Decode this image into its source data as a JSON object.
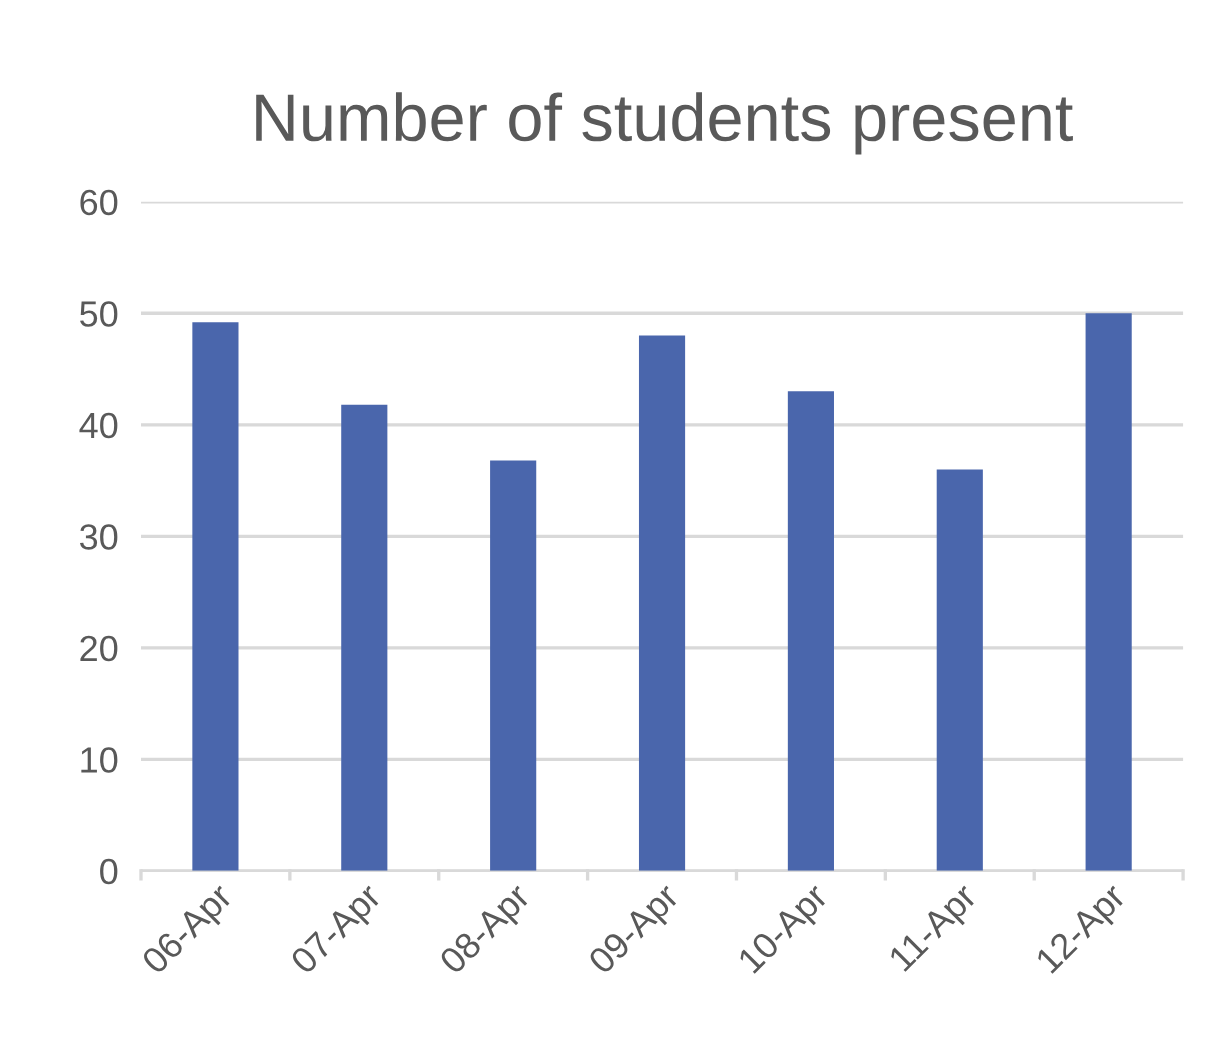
{
  "chart_data": {
    "type": "bar",
    "title": "Number of students present",
    "categories": [
      "06-Apr",
      "07-Apr",
      "08-Apr",
      "09-Apr",
      "10-Apr",
      "11-Apr",
      "12-Apr"
    ],
    "values": [
      49.2,
      41.8,
      36.8,
      48,
      43,
      36,
      50
    ],
    "color": "#4a66ac",
    "ylim": [
      0,
      60
    ],
    "yticks": [
      0,
      10,
      20,
      30,
      40,
      50,
      60
    ],
    "grid": "y",
    "legend": false
  }
}
